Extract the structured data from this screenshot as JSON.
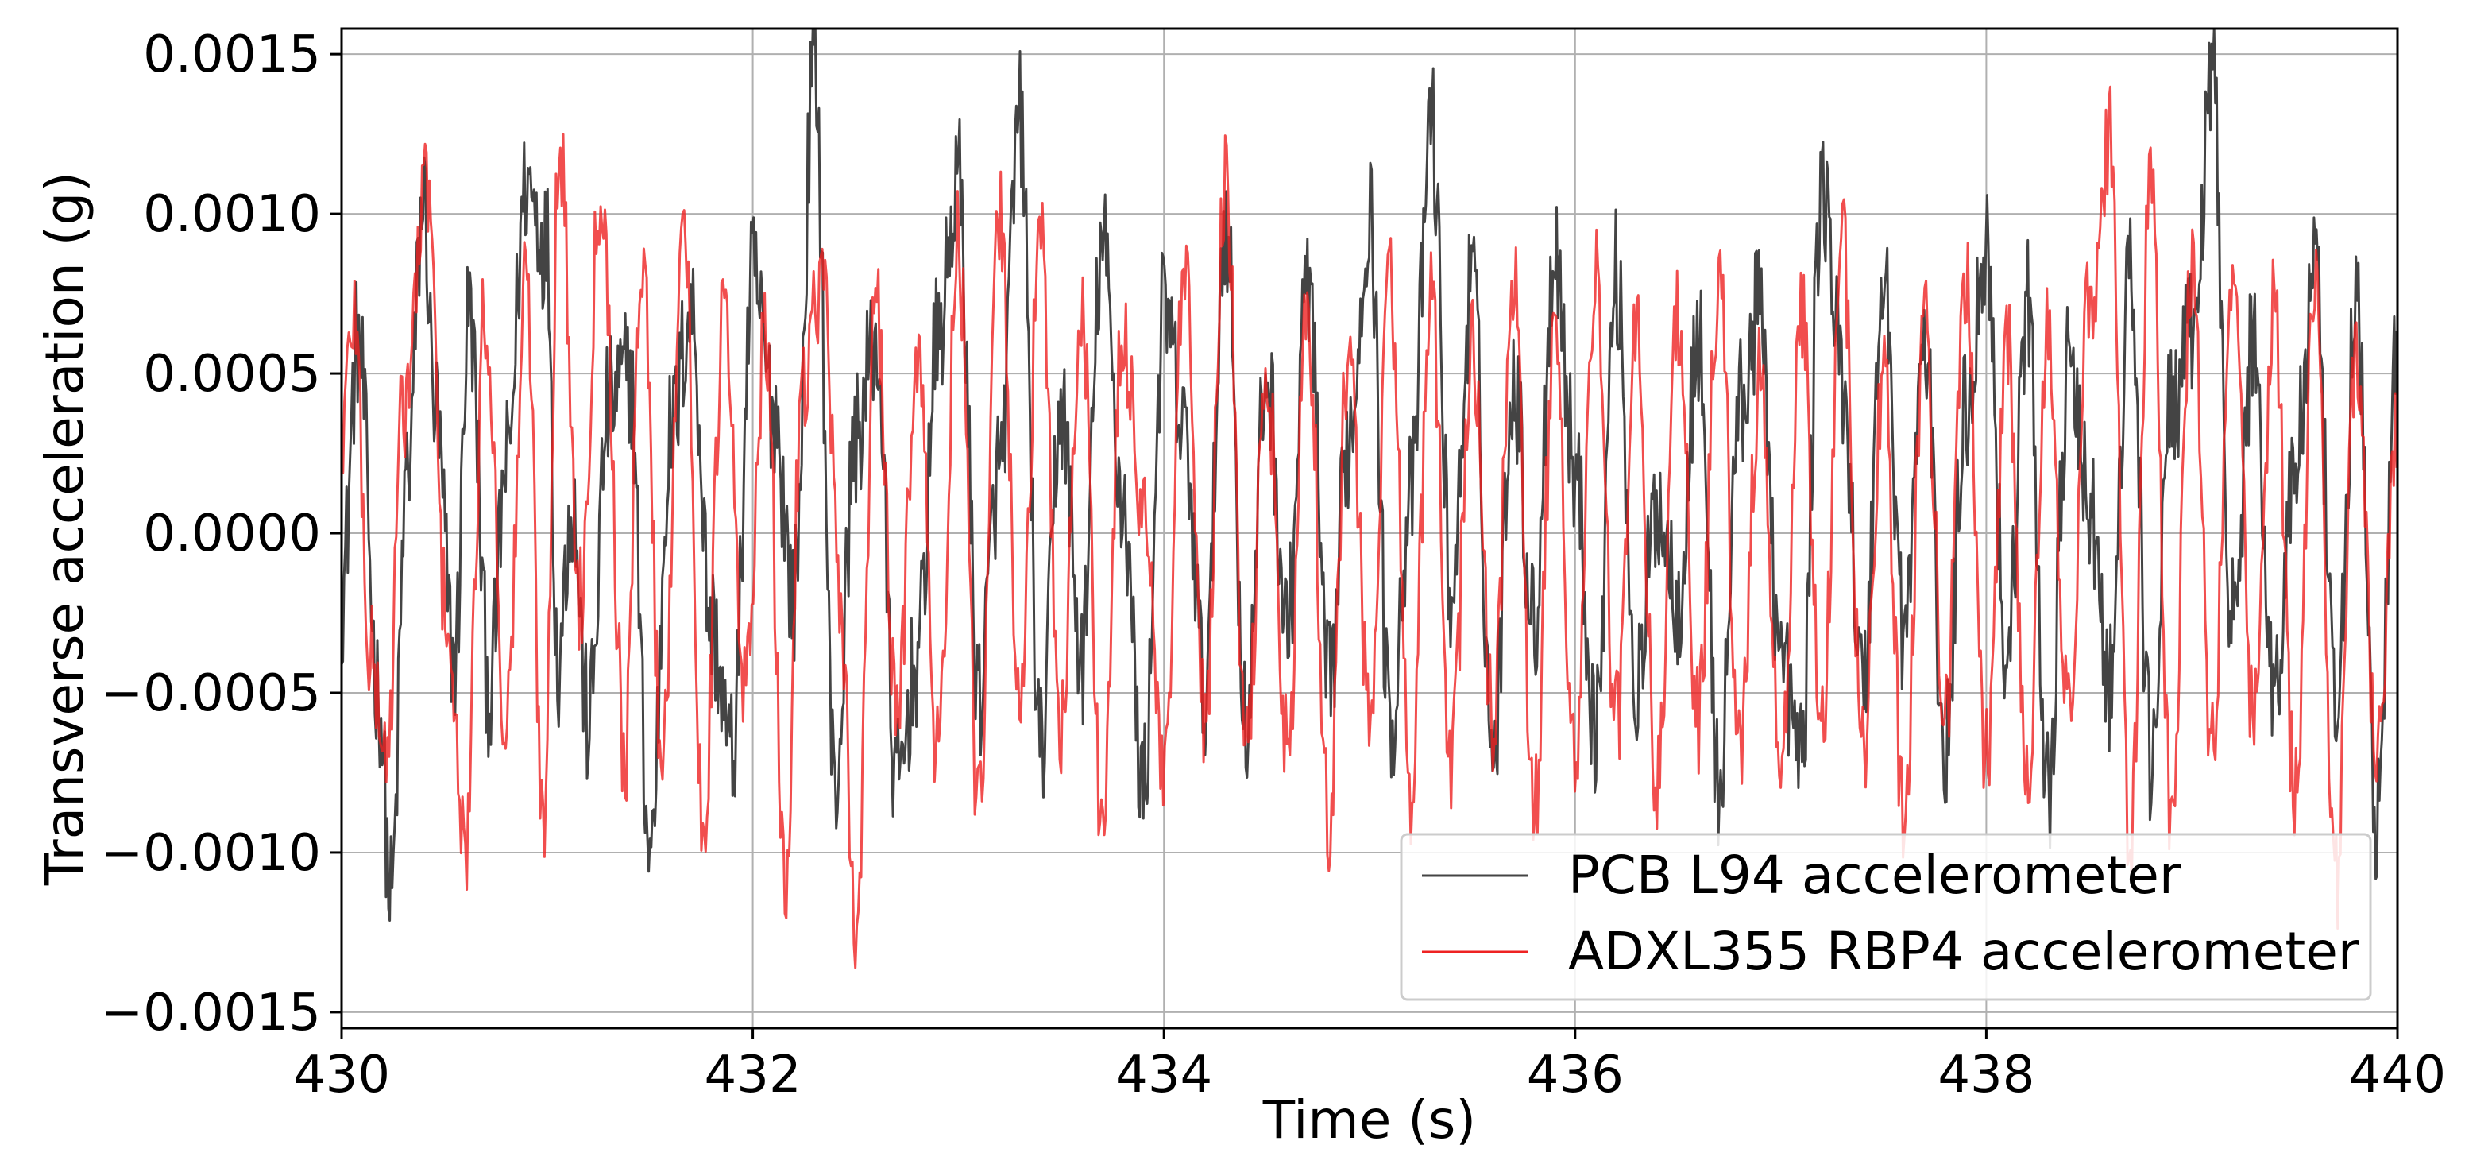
{
  "chart_data": {
    "type": "line",
    "xlabel": "Time (s)",
    "ylabel": "Transverse acceleration (g)",
    "xlim": [
      430,
      440
    ],
    "ylim": [
      -0.00155,
      0.00158
    ],
    "x_ticks": [
      430,
      432,
      434,
      436,
      438,
      440
    ],
    "x_tick_labels": [
      "430",
      "432",
      "434",
      "436",
      "438",
      "440"
    ],
    "y_ticks": [
      -0.0015,
      -0.001,
      -0.0005,
      0.0,
      0.0005,
      0.001,
      0.0015
    ],
    "y_tick_labels": [
      "−0.0015",
      "−0.0010",
      "−0.0005",
      "0.0000",
      "0.0005",
      "0.0010",
      "0.0015"
    ],
    "grid": true,
    "legend_position": "lower-right",
    "series": [
      {
        "name": "PCB L94 accelerometer",
        "color": "#444444",
        "x": [
          430.0,
          430.08,
          430.18,
          430.24,
          430.32,
          430.4,
          430.45,
          430.55,
          430.62,
          430.72,
          430.8,
          430.9,
          431.0,
          431.05,
          431.12,
          431.2,
          431.3,
          431.4,
          431.5,
          431.6,
          431.7,
          431.8,
          431.9,
          432.0,
          432.1,
          432.2,
          432.3,
          432.4,
          432.5,
          432.6,
          432.7,
          432.8,
          432.9,
          433.0,
          433.1,
          433.2,
          433.3,
          433.4,
          433.5,
          433.6,
          433.7,
          433.8,
          433.9,
          434.0,
          434.1,
          434.2,
          434.3,
          434.4,
          434.5,
          434.6,
          434.7,
          434.8,
          434.9,
          435.0,
          435.1,
          435.2,
          435.3,
          435.4,
          435.5,
          435.6,
          435.7,
          435.8,
          435.9,
          436.0,
          436.1,
          436.2,
          436.3,
          436.4,
          436.5,
          436.6,
          436.7,
          436.8,
          436.9,
          437.0,
          437.1,
          437.2,
          437.3,
          437.4,
          437.5,
          437.6,
          437.7,
          437.8,
          437.9,
          438.0,
          438.1,
          438.2,
          438.3,
          438.4,
          438.5,
          438.6,
          438.7,
          438.8,
          438.9,
          439.0,
          439.1,
          439.2,
          439.3,
          439.4,
          439.5,
          439.6,
          439.7,
          439.8,
          439.9,
          440.0
        ],
        "y": [
          -0.0002,
          0.0006,
          -0.0005,
          -0.00115,
          0.0002,
          0.00105,
          0.0004,
          -0.0004,
          0.0007,
          -0.0005,
          0.0002,
          0.0011,
          0.0009,
          -0.0004,
          0.0001,
          -0.0006,
          0.0004,
          0.0005,
          -0.001,
          0.0003,
          0.0007,
          -0.0003,
          -0.0007,
          0.0008,
          0.0004,
          -0.0002,
          0.0015,
          -0.0008,
          0.0003,
          0.0006,
          -0.0008,
          -0.0004,
          0.0006,
          0.0011,
          -0.0005,
          0.0002,
          0.0013,
          -0.0007,
          0.0004,
          -0.0004,
          0.0009,
          0.0001,
          -0.0008,
          0.0007,
          0.0003,
          -0.0005,
          0.001,
          -0.0006,
          0.0005,
          -0.0003,
          0.0008,
          -0.0005,
          0.0003,
          0.001,
          -0.0006,
          0.0001,
          0.0013,
          -0.0002,
          0.0008,
          -0.0007,
          0.0005,
          -0.0003,
          0.0009,
          0.0002,
          -0.0006,
          0.0008,
          -0.0005,
          0.0001,
          -0.0002,
          0.0006,
          -0.0008,
          0.0004,
          0.0007,
          -0.0004,
          -0.0007,
          0.0011,
          0.0005,
          -0.0005,
          0.0008,
          -0.0003,
          0.0006,
          -0.0007,
          0.0004,
          0.0009,
          -0.0004,
          0.0007,
          -0.0008,
          0.0005,
          0.0001,
          -0.0005,
          0.0008,
          -0.0007,
          0.0004,
          0.0006,
          0.0014,
          -0.0003,
          0.0006,
          -0.0005,
          0.0002,
          0.0008,
          -0.0006,
          0.0007,
          -0.0009,
          0.0006
        ]
      },
      {
        "name": "ADXL355 RBP4 accelerometer",
        "color": "#ee2222",
        "x": [
          430.0,
          430.06,
          430.14,
          430.22,
          430.3,
          430.42,
          430.5,
          430.6,
          430.7,
          430.8,
          430.9,
          430.98,
          431.06,
          431.16,
          431.26,
          431.38,
          431.46,
          431.56,
          431.66,
          431.76,
          431.86,
          431.96,
          432.06,
          432.16,
          432.24,
          432.34,
          432.44,
          432.5,
          432.6,
          432.7,
          432.8,
          432.9,
          433.0,
          433.1,
          433.2,
          433.3,
          433.4,
          433.5,
          433.6,
          433.7,
          433.8,
          433.9,
          434.0,
          434.1,
          434.2,
          434.3,
          434.4,
          434.5,
          434.6,
          434.7,
          434.8,
          434.9,
          435.0,
          435.1,
          435.2,
          435.3,
          435.4,
          435.5,
          435.6,
          435.7,
          435.8,
          435.9,
          436.0,
          436.1,
          436.2,
          436.3,
          436.4,
          436.5,
          436.6,
          436.7,
          436.8,
          436.9,
          437.0,
          437.1,
          437.2,
          437.3,
          437.4,
          437.5,
          437.6,
          437.7,
          437.8,
          437.9,
          438.0,
          438.1,
          438.2,
          438.3,
          438.4,
          438.5,
          438.6,
          438.7,
          438.8,
          438.9,
          439.0,
          439.1,
          439.2,
          439.3,
          439.4,
          439.5,
          439.6,
          439.7,
          439.8,
          439.9,
          440.0
        ],
        "y": [
          0.0003,
          0.0007,
          -0.0004,
          -0.0007,
          0.0004,
          0.0011,
          -0.0002,
          -0.001,
          0.0007,
          -0.0006,
          0.0008,
          -0.0009,
          0.0012,
          -0.0002,
          0.0011,
          -0.0007,
          0.0009,
          -0.0007,
          0.001,
          -0.0009,
          0.0007,
          -0.0005,
          0.0006,
          -0.0011,
          0.0005,
          0.0008,
          -0.0004,
          -0.00126,
          0.0007,
          -0.0006,
          0.0006,
          -0.0007,
          0.0009,
          -0.0009,
          0.001,
          -0.0005,
          0.0009,
          -0.0006,
          0.0007,
          -0.0009,
          0.0006,
          0.0001,
          -0.0008,
          0.0008,
          -0.0006,
          0.0011,
          -0.0007,
          0.0005,
          -0.0007,
          0.0007,
          -0.0009,
          0.0006,
          -0.0006,
          0.0008,
          -0.0008,
          0.0007,
          -0.0007,
          0.0006,
          -0.0006,
          0.0008,
          -0.0009,
          0.0006,
          -0.0007,
          0.0008,
          -0.0006,
          0.0006,
          -0.0008,
          0.0007,
          -0.0006,
          0.0008,
          -0.0007,
          0.0005,
          -0.0008,
          0.0007,
          -0.0006,
          0.0009,
          -0.0007,
          0.0005,
          -0.0009,
          0.0007,
          -0.0006,
          0.0008,
          -0.0007,
          0.0006,
          -0.0008,
          0.0007,
          -0.0006,
          0.0007,
          0.00125,
          -0.001,
          0.0011,
          -0.0009,
          0.0008,
          -0.0007,
          0.0009,
          -0.0006,
          0.0007,
          -0.0008,
          0.0008,
          -0.0011,
          0.0006,
          -0.0007,
          0.0003
        ]
      }
    ]
  }
}
